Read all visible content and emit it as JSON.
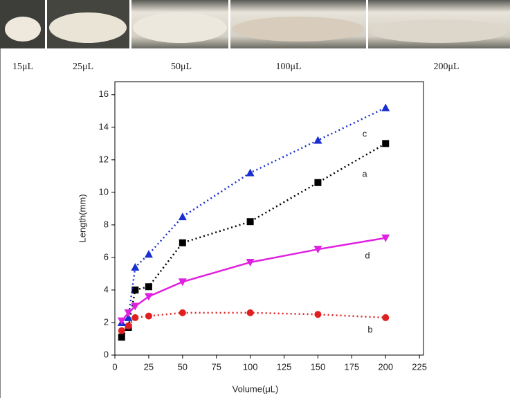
{
  "chart_data": {
    "type": "line",
    "image_labels": [
      "15μL",
      "25μL",
      "50μL",
      "100μL",
      "200μL"
    ],
    "xlabel": "Volume(μL)",
    "ylabel": "Length(mm)",
    "x": [
      5,
      10,
      15,
      25,
      50,
      100,
      150,
      200
    ],
    "series": [
      {
        "name": "a",
        "color": "#000000",
        "marker": "square",
        "dash": true,
        "values": [
          1.1,
          1.7,
          4.0,
          4.2,
          6.9,
          8.2,
          10.6,
          13.0
        ]
      },
      {
        "name": "b",
        "color": "#e02020",
        "marker": "circle",
        "dash": true,
        "values": [
          1.5,
          1.8,
          2.3,
          2.4,
          2.6,
          2.6,
          2.5,
          2.3
        ]
      },
      {
        "name": "c",
        "color": "#1a2fd0",
        "marker": "triangle-up",
        "dash": true,
        "values": [
          2.0,
          2.3,
          5.4,
          6.2,
          8.5,
          11.2,
          13.2,
          15.2
        ]
      },
      {
        "name": "d",
        "color": "#e020e0",
        "marker": "triangle-down",
        "dash": false,
        "values": [
          2.1,
          2.6,
          3.0,
          3.6,
          4.5,
          5.7,
          6.5,
          7.2
        ]
      }
    ],
    "xlim": [
      0,
      228
    ],
    "ylim": [
      0,
      16.8
    ],
    "xticks": [
      0,
      25,
      50,
      75,
      100,
      125,
      150,
      175,
      200,
      225
    ],
    "yticks": [
      0,
      2,
      4,
      6,
      8,
      10,
      12,
      14,
      16
    ]
  }
}
